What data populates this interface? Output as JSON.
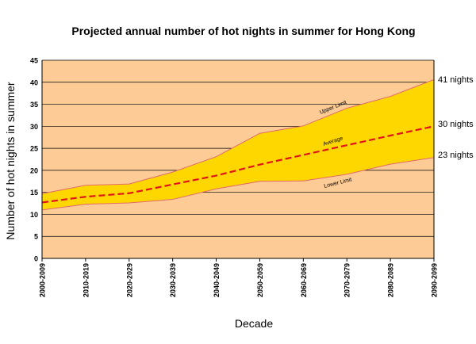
{
  "chart_data": {
    "type": "area",
    "title": "Projected annual number of hot nights in summer for Hong Kong",
    "xlabel": "Decade",
    "ylabel": "Number of hot nights in summer",
    "categories": [
      "2000-2009",
      "2010-2019",
      "2020-2029",
      "2030-2039",
      "2040-2049",
      "2050-2059",
      "2060-2069",
      "2070-2079",
      "2080-2089",
      "2090-2099"
    ],
    "ylim": [
      0,
      45
    ],
    "yticks": [
      0,
      5,
      10,
      15,
      20,
      25,
      30,
      35,
      40,
      45
    ],
    "grid": true,
    "series": [
      {
        "name": "Upper Limit",
        "values": [
          14.7,
          16.6,
          16.9,
          19.6,
          23.1,
          28.4,
          30.1,
          34.1,
          36.8,
          40.6
        ]
      },
      {
        "name": "Average",
        "values": [
          12.7,
          14.0,
          14.8,
          16.8,
          18.8,
          21.3,
          23.5,
          25.7,
          27.9,
          30.0
        ]
      },
      {
        "name": "Lower Limit",
        "values": [
          11.0,
          12.3,
          12.6,
          13.4,
          15.8,
          17.5,
          17.6,
          19.1,
          21.4,
          22.9
        ]
      }
    ],
    "end_labels": [
      "41 nights",
      "30 nights",
      "23 nights"
    ],
    "colors": {
      "plot_bg": "#FCCB96",
      "band": "#FFD700",
      "average": "#E0141B",
      "limit_line": "#E36A6A",
      "grid": "#000000"
    }
  }
}
